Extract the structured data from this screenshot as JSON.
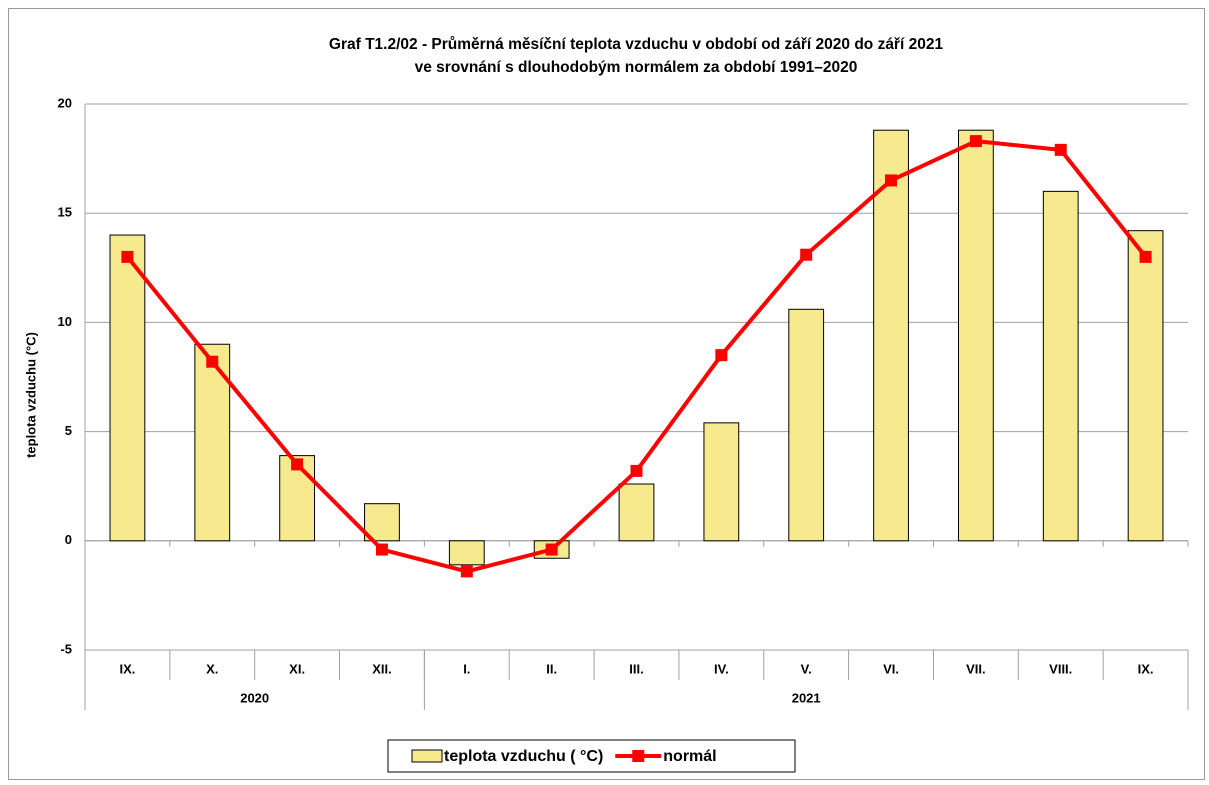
{
  "chart_data": {
    "type": "bar",
    "title": "Graf T1.2/02 - Průměrná měsíční teplota vzduchu v období od září 2020 do září 2021",
    "subtitle": "ve srovnání s dlouhodobým normálem za období 1991–2020",
    "y_label": "teplota vzduchu (°C)",
    "categories": [
      "IX.",
      "X.",
      "XI.",
      "XII.",
      "I.",
      "II.",
      "III.",
      "IV.",
      "V.",
      "VI.",
      "VII.",
      "VIII.",
      "IX."
    ],
    "category_groups": [
      {
        "label": "2020",
        "count": 4
      },
      {
        "label": "2021",
        "count": 9
      }
    ],
    "series": [
      {
        "name": "teplota vzduchu ( °C)",
        "type": "bar",
        "color": "#f7e98e",
        "values": [
          14.0,
          9.0,
          3.9,
          1.7,
          -1.1,
          -0.8,
          2.6,
          5.4,
          10.6,
          18.8,
          18.8,
          16.0,
          14.2
        ]
      },
      {
        "name": "normál",
        "type": "line",
        "color": "#ff0000",
        "values": [
          13.0,
          8.2,
          3.5,
          -0.4,
          -1.4,
          -0.4,
          3.2,
          8.5,
          13.1,
          16.5,
          18.3,
          17.9,
          13.0
        ]
      }
    ],
    "ylim": [
      -5,
      20
    ],
    "yticks": [
      -5,
      0,
      5,
      10,
      15,
      20
    ],
    "grid": true,
    "legend": "bottom"
  }
}
